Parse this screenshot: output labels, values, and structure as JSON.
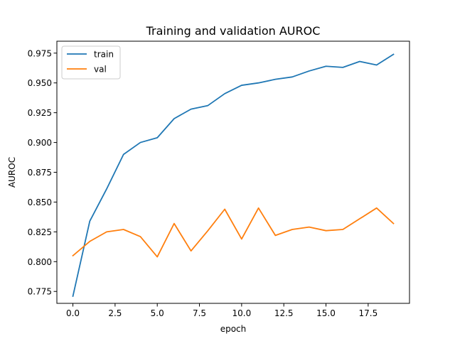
{
  "chart_data": {
    "type": "line",
    "title": "Training and validation AUROC",
    "xlabel": "epoch",
    "ylabel": "AUROC",
    "xlim": [
      -0.95,
      19.95
    ],
    "ylim": [
      0.765,
      0.985
    ],
    "x": [
      0,
      1,
      2,
      3,
      4,
      5,
      6,
      7,
      8,
      9,
      10,
      11,
      12,
      13,
      14,
      15,
      16,
      17,
      18,
      19
    ],
    "x_ticks": [
      0.0,
      2.5,
      5.0,
      7.5,
      10.0,
      12.5,
      15.0,
      17.5
    ],
    "x_tick_labels": [
      "0.0",
      "2.5",
      "5.0",
      "7.5",
      "10.0",
      "12.5",
      "15.0",
      "17.5"
    ],
    "y_ticks": [
      0.775,
      0.8,
      0.825,
      0.85,
      0.875,
      0.9,
      0.925,
      0.95,
      0.975
    ],
    "y_tick_labels": [
      "0.775",
      "0.800",
      "0.825",
      "0.850",
      "0.875",
      "0.900",
      "0.925",
      "0.950",
      "0.975"
    ],
    "grid": false,
    "legend_position": "top-left",
    "series": [
      {
        "name": "train",
        "color": "#1f77b4",
        "values": [
          0.771,
          0.834,
          0.861,
          0.89,
          0.9,
          0.904,
          0.92,
          0.928,
          0.931,
          0.941,
          0.948,
          0.95,
          0.953,
          0.955,
          0.96,
          0.964,
          0.963,
          0.968,
          0.965,
          0.974
        ]
      },
      {
        "name": "val",
        "color": "#ff7f0e",
        "values": [
          0.805,
          0.817,
          0.825,
          0.827,
          0.821,
          0.804,
          0.832,
          0.809,
          0.826,
          0.844,
          0.819,
          0.845,
          0.822,
          0.827,
          0.829,
          0.826,
          0.827,
          0.836,
          0.845,
          0.832
        ]
      }
    ]
  }
}
